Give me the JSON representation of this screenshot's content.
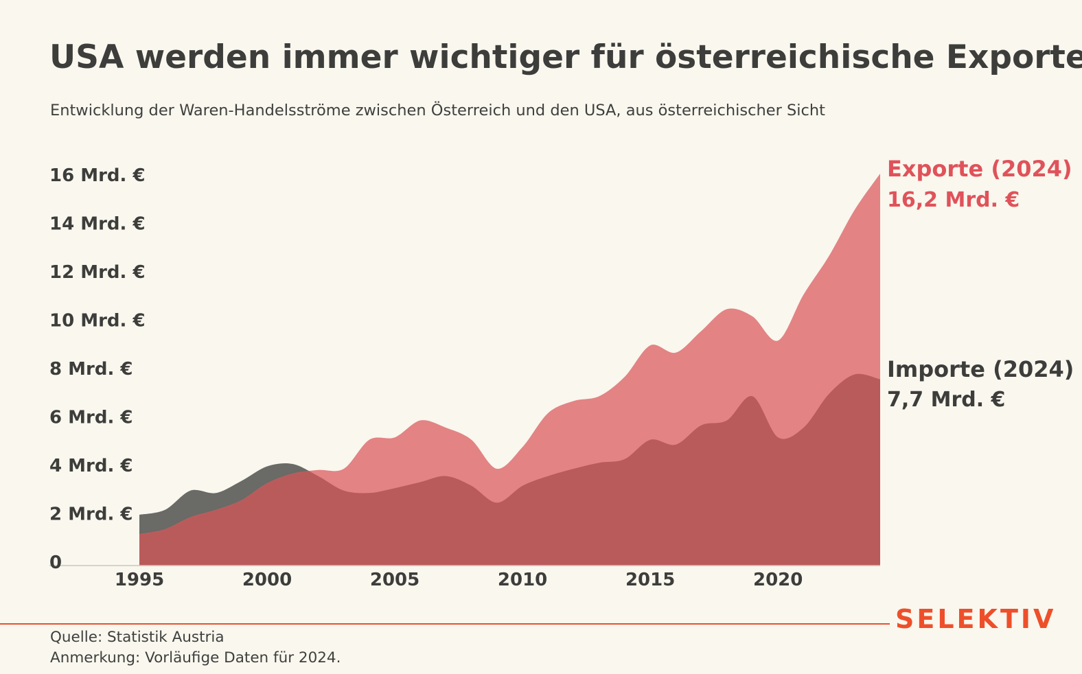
{
  "header": {
    "title": "USA werden immer wichtiger für österreichische Exporte",
    "subtitle": "Entwicklung der Waren-Handelsströme zwischen Österreich und den USA, aus österreichischer Sicht"
  },
  "colors": {
    "exports": "#e38384",
    "imports": "#6a6a66",
    "overlap": "#ba5b5b",
    "exports_label": "#e0525a",
    "imports_label": "#3d3d3b",
    "brand": "#ee4f2a",
    "background": "#f9f7ee"
  },
  "chart_data": {
    "type": "area",
    "x": [
      1995,
      1996,
      1997,
      1998,
      1999,
      2000,
      2001,
      2002,
      2003,
      2004,
      2005,
      2006,
      2007,
      2008,
      2009,
      2010,
      2011,
      2012,
      2013,
      2014,
      2015,
      2016,
      2017,
      2018,
      2019,
      2020,
      2021,
      2022,
      2023,
      2024
    ],
    "series": [
      {
        "name": "Exporte",
        "values": [
          1.3,
          1.5,
          2.0,
          2.3,
          2.7,
          3.4,
          3.8,
          3.95,
          4.0,
          5.2,
          5.3,
          6.0,
          5.7,
          5.2,
          4.0,
          4.9,
          6.3,
          6.8,
          7.0,
          7.8,
          9.1,
          8.8,
          9.7,
          10.6,
          10.3,
          9.3,
          11.2,
          12.8,
          14.7,
          16.2
        ]
      },
      {
        "name": "Importe",
        "values": [
          2.1,
          2.3,
          3.1,
          3.0,
          3.5,
          4.1,
          4.2,
          3.7,
          3.1,
          3.0,
          3.2,
          3.45,
          3.7,
          3.3,
          2.6,
          3.3,
          3.7,
          4.0,
          4.25,
          4.4,
          5.2,
          5.0,
          5.8,
          6.0,
          7.0,
          5.3,
          5.7,
          7.1,
          7.9,
          7.7
        ]
      }
    ],
    "y_ticks": [
      {
        "value": 0,
        "label": "0"
      },
      {
        "value": 2,
        "label": "2 Mrd. €"
      },
      {
        "value": 4,
        "label": "4 Mrd. €"
      },
      {
        "value": 6,
        "label": "6 Mrd. €"
      },
      {
        "value": 8,
        "label": "8 Mrd. €"
      },
      {
        "value": 10,
        "label": "10 Mrd. €"
      },
      {
        "value": 12,
        "label": "12 Mrd. €"
      },
      {
        "value": 14,
        "label": "14 Mrd. €"
      },
      {
        "value": 16,
        "label": "16 Mrd. €"
      }
    ],
    "x_ticks": [
      {
        "value": 1995,
        "label": "1995"
      },
      {
        "value": 2000,
        "label": "2000"
      },
      {
        "value": 2005,
        "label": "2005"
      },
      {
        "value": 2010,
        "label": "2010"
      },
      {
        "value": 2015,
        "label": "2015"
      },
      {
        "value": 2020,
        "label": "2020"
      }
    ],
    "ylim": [
      0,
      16
    ],
    "xlim": [
      1995,
      2024
    ],
    "grid": false,
    "annotations": {
      "exports_title": "Exporte (2024)",
      "exports_value": "16,2 Mrd. €",
      "imports_title": "Importe (2024)",
      "imports_value": "7,7 Mrd. €"
    }
  },
  "footer": {
    "source": "Quelle: Statistik Austria",
    "note": "Anmerkung: Vorläufige Daten für 2024.",
    "brand": "SELEKTIV"
  }
}
